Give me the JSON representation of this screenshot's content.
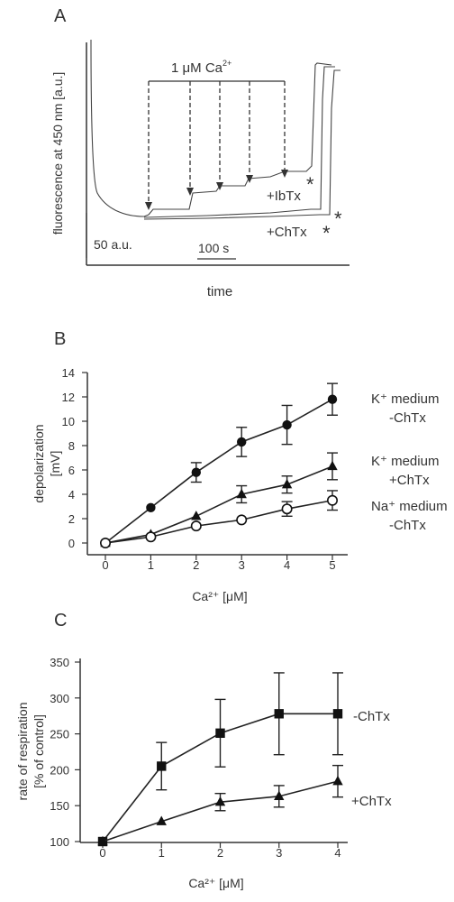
{
  "panels": {
    "a": "A",
    "b": "B",
    "c": "C"
  },
  "panel_a": {
    "ylabel": "fluorescence at 450 nm [a.u.]",
    "xlabel": "time",
    "annotation": "1 μM Ca",
    "annotation_sup": "2+",
    "traces": [
      "+IbTx",
      "+ChTx"
    ],
    "scale_y": "50 a.u.",
    "scale_x": "100 s",
    "star": "*"
  },
  "chart_data": [
    {
      "type": "line",
      "xlabel": "Ca²⁺ [μM]",
      "ylabel": [
        "depolarization",
        "[mV]"
      ],
      "x": [
        0,
        1,
        2,
        3,
        4,
        5
      ],
      "xlim": [
        0,
        5
      ],
      "ylim": [
        0,
        14
      ],
      "xticks": [
        "0",
        "1",
        "2",
        "3",
        "4",
        "5"
      ],
      "yticks": [
        "0",
        "2",
        "4",
        "6",
        "8",
        "10",
        "12",
        "14"
      ],
      "series": [
        {
          "name": "K⁺ medium -ChTx",
          "marker": "circle-filled",
          "values": [
            0,
            2.9,
            5.8,
            8.3,
            9.7,
            11.8
          ],
          "err": [
            0,
            0,
            0.8,
            1.2,
            1.6,
            1.3
          ]
        },
        {
          "name": "K⁺ medium +ChTx",
          "marker": "triangle-filled",
          "values": [
            0,
            0.7,
            2.2,
            4.0,
            4.8,
            6.3
          ],
          "err": [
            0,
            0,
            0,
            0.7,
            0.7,
            1.1
          ]
        },
        {
          "name": "Na⁺ medium -ChTx",
          "marker": "circle-open",
          "values": [
            0,
            0.5,
            1.4,
            1.9,
            2.8,
            3.5
          ],
          "err": [
            0,
            0,
            0,
            0,
            0.6,
            0.8
          ]
        }
      ],
      "legend": [
        [
          "K⁺ medium",
          "-ChTx"
        ],
        [
          "K⁺ medium",
          "+ChTx"
        ],
        [
          "Na⁺ medium",
          "-ChTx"
        ]
      ]
    },
    {
      "type": "line",
      "xlabel": "Ca²⁺ [μM]",
      "ylabel": [
        "rate of respiration",
        "[% of control]"
      ],
      "x": [
        0,
        1,
        2,
        3,
        4
      ],
      "xlim": [
        0,
        4
      ],
      "ylim": [
        90,
        350
      ],
      "xticks": [
        "0",
        "1",
        "2",
        "3",
        "4"
      ],
      "yticks": [
        "100",
        "150",
        "200",
        "250",
        "300",
        "350"
      ],
      "series": [
        {
          "name": "-ChTx",
          "marker": "square-filled",
          "values": [
            100,
            205,
            251,
            278,
            278
          ],
          "err": [
            0,
            33,
            47,
            57,
            57
          ]
        },
        {
          "name": "+ChTx",
          "marker": "triangle-filled",
          "values": [
            100,
            128,
            155,
            163,
            184
          ],
          "err": [
            0,
            0,
            12,
            15,
            22
          ]
        }
      ],
      "legend": [
        [
          "-ChTx"
        ],
        [
          "+ChTx"
        ]
      ]
    }
  ]
}
